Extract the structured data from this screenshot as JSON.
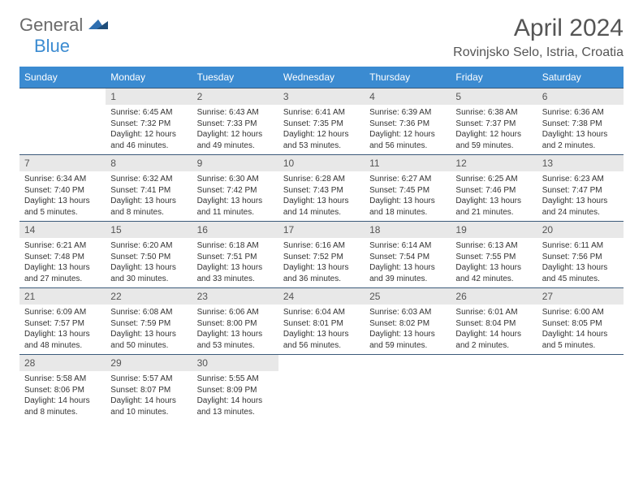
{
  "logo": {
    "general": "General",
    "blue": "Blue"
  },
  "title": "April 2024",
  "location": "Rovinjsko Selo, Istria, Croatia",
  "colors": {
    "header_bg": "#3b8bd1",
    "header_text": "#ffffff",
    "daynum_bg": "#e8e8e8",
    "border": "#3b5a7a",
    "text": "#333333",
    "title": "#555555"
  },
  "weekdays": [
    "Sunday",
    "Monday",
    "Tuesday",
    "Wednesday",
    "Thursday",
    "Friday",
    "Saturday"
  ],
  "start_offset": 1,
  "days_in_month": 30,
  "days": {
    "1": {
      "sunrise": "6:45 AM",
      "sunset": "7:32 PM",
      "daylight": "12 hours and 46 minutes."
    },
    "2": {
      "sunrise": "6:43 AM",
      "sunset": "7:33 PM",
      "daylight": "12 hours and 49 minutes."
    },
    "3": {
      "sunrise": "6:41 AM",
      "sunset": "7:35 PM",
      "daylight": "12 hours and 53 minutes."
    },
    "4": {
      "sunrise": "6:39 AM",
      "sunset": "7:36 PM",
      "daylight": "12 hours and 56 minutes."
    },
    "5": {
      "sunrise": "6:38 AM",
      "sunset": "7:37 PM",
      "daylight": "12 hours and 59 minutes."
    },
    "6": {
      "sunrise": "6:36 AM",
      "sunset": "7:38 PM",
      "daylight": "13 hours and 2 minutes."
    },
    "7": {
      "sunrise": "6:34 AM",
      "sunset": "7:40 PM",
      "daylight": "13 hours and 5 minutes."
    },
    "8": {
      "sunrise": "6:32 AM",
      "sunset": "7:41 PM",
      "daylight": "13 hours and 8 minutes."
    },
    "9": {
      "sunrise": "6:30 AM",
      "sunset": "7:42 PM",
      "daylight": "13 hours and 11 minutes."
    },
    "10": {
      "sunrise": "6:28 AM",
      "sunset": "7:43 PM",
      "daylight": "13 hours and 14 minutes."
    },
    "11": {
      "sunrise": "6:27 AM",
      "sunset": "7:45 PM",
      "daylight": "13 hours and 18 minutes."
    },
    "12": {
      "sunrise": "6:25 AM",
      "sunset": "7:46 PM",
      "daylight": "13 hours and 21 minutes."
    },
    "13": {
      "sunrise": "6:23 AM",
      "sunset": "7:47 PM",
      "daylight": "13 hours and 24 minutes."
    },
    "14": {
      "sunrise": "6:21 AM",
      "sunset": "7:48 PM",
      "daylight": "13 hours and 27 minutes."
    },
    "15": {
      "sunrise": "6:20 AM",
      "sunset": "7:50 PM",
      "daylight": "13 hours and 30 minutes."
    },
    "16": {
      "sunrise": "6:18 AM",
      "sunset": "7:51 PM",
      "daylight": "13 hours and 33 minutes."
    },
    "17": {
      "sunrise": "6:16 AM",
      "sunset": "7:52 PM",
      "daylight": "13 hours and 36 minutes."
    },
    "18": {
      "sunrise": "6:14 AM",
      "sunset": "7:54 PM",
      "daylight": "13 hours and 39 minutes."
    },
    "19": {
      "sunrise": "6:13 AM",
      "sunset": "7:55 PM",
      "daylight": "13 hours and 42 minutes."
    },
    "20": {
      "sunrise": "6:11 AM",
      "sunset": "7:56 PM",
      "daylight": "13 hours and 45 minutes."
    },
    "21": {
      "sunrise": "6:09 AM",
      "sunset": "7:57 PM",
      "daylight": "13 hours and 48 minutes."
    },
    "22": {
      "sunrise": "6:08 AM",
      "sunset": "7:59 PM",
      "daylight": "13 hours and 50 minutes."
    },
    "23": {
      "sunrise": "6:06 AM",
      "sunset": "8:00 PM",
      "daylight": "13 hours and 53 minutes."
    },
    "24": {
      "sunrise": "6:04 AM",
      "sunset": "8:01 PM",
      "daylight": "13 hours and 56 minutes."
    },
    "25": {
      "sunrise": "6:03 AM",
      "sunset": "8:02 PM",
      "daylight": "13 hours and 59 minutes."
    },
    "26": {
      "sunrise": "6:01 AM",
      "sunset": "8:04 PM",
      "daylight": "14 hours and 2 minutes."
    },
    "27": {
      "sunrise": "6:00 AM",
      "sunset": "8:05 PM",
      "daylight": "14 hours and 5 minutes."
    },
    "28": {
      "sunrise": "5:58 AM",
      "sunset": "8:06 PM",
      "daylight": "14 hours and 8 minutes."
    },
    "29": {
      "sunrise": "5:57 AM",
      "sunset": "8:07 PM",
      "daylight": "14 hours and 10 minutes."
    },
    "30": {
      "sunrise": "5:55 AM",
      "sunset": "8:09 PM",
      "daylight": "14 hours and 13 minutes."
    }
  },
  "labels": {
    "sunrise": "Sunrise: ",
    "sunset": "Sunset: ",
    "daylight": "Daylight: "
  }
}
